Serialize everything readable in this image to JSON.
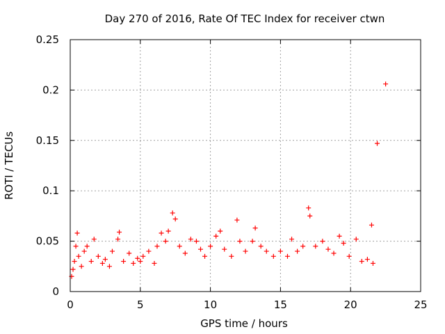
{
  "chart_data": {
    "type": "scatter",
    "title": "Day 270 of 2016, Rate Of TEC Index for receiver ctwn",
    "xlabel": "GPS time / hours",
    "ylabel": "ROTI / TECUs",
    "xlim": [
      0,
      25
    ],
    "ylim": [
      0,
      0.25
    ],
    "xticks": [
      0,
      5,
      10,
      15,
      20,
      25
    ],
    "yticks": [
      0,
      0.05,
      0.1,
      0.15,
      0.2,
      0.25
    ],
    "xtick_labels": [
      "0",
      "5",
      "10",
      "15",
      "20",
      "25"
    ],
    "ytick_labels": [
      "0",
      "0.05",
      "0.1",
      "0.15",
      "0.2",
      "0.25"
    ],
    "grid": true,
    "marker": "+",
    "color": "#ff0000",
    "series": [
      {
        "name": "ROTI",
        "points": [
          [
            0.1,
            0.015
          ],
          [
            0.2,
            0.022
          ],
          [
            0.3,
            0.03
          ],
          [
            0.4,
            0.045
          ],
          [
            0.5,
            0.058
          ],
          [
            0.6,
            0.035
          ],
          [
            0.8,
            0.025
          ],
          [
            1.0,
            0.04
          ],
          [
            1.2,
            0.045
          ],
          [
            1.5,
            0.03
          ],
          [
            1.7,
            0.052
          ],
          [
            2.0,
            0.035
          ],
          [
            2.3,
            0.028
          ],
          [
            2.5,
            0.032
          ],
          [
            2.8,
            0.025
          ],
          [
            3.0,
            0.04
          ],
          [
            3.4,
            0.052
          ],
          [
            3.5,
            0.059
          ],
          [
            3.8,
            0.03
          ],
          [
            4.2,
            0.038
          ],
          [
            4.5,
            0.028
          ],
          [
            4.8,
            0.033
          ],
          [
            5.0,
            0.03
          ],
          [
            5.2,
            0.035
          ],
          [
            5.6,
            0.04
          ],
          [
            6.0,
            0.028
          ],
          [
            6.2,
            0.045
          ],
          [
            6.5,
            0.058
          ],
          [
            6.8,
            0.05
          ],
          [
            7.0,
            0.06
          ],
          [
            7.3,
            0.078
          ],
          [
            7.5,
            0.072
          ],
          [
            7.8,
            0.045
          ],
          [
            8.2,
            0.038
          ],
          [
            8.6,
            0.052
          ],
          [
            9.0,
            0.05
          ],
          [
            9.3,
            0.042
          ],
          [
            9.6,
            0.035
          ],
          [
            10.0,
            0.045
          ],
          [
            10.4,
            0.055
          ],
          [
            10.7,
            0.06
          ],
          [
            11.0,
            0.042
          ],
          [
            11.5,
            0.035
          ],
          [
            11.9,
            0.071
          ],
          [
            12.1,
            0.05
          ],
          [
            12.5,
            0.04
          ],
          [
            13.0,
            0.05
          ],
          [
            13.2,
            0.063
          ],
          [
            13.6,
            0.045
          ],
          [
            14.0,
            0.04
          ],
          [
            14.5,
            0.035
          ],
          [
            15.0,
            0.04
          ],
          [
            15.5,
            0.035
          ],
          [
            15.8,
            0.052
          ],
          [
            16.2,
            0.04
          ],
          [
            16.6,
            0.045
          ],
          [
            17.0,
            0.083
          ],
          [
            17.1,
            0.075
          ],
          [
            17.5,
            0.045
          ],
          [
            18.0,
            0.05
          ],
          [
            18.4,
            0.042
          ],
          [
            18.8,
            0.038
          ],
          [
            19.2,
            0.055
          ],
          [
            19.5,
            0.048
          ],
          [
            19.9,
            0.035
          ],
          [
            20.4,
            0.052
          ],
          [
            20.8,
            0.03
          ],
          [
            21.2,
            0.032
          ],
          [
            21.5,
            0.066
          ],
          [
            21.6,
            0.028
          ],
          [
            21.9,
            0.147
          ],
          [
            22.5,
            0.206
          ]
        ]
      }
    ]
  }
}
